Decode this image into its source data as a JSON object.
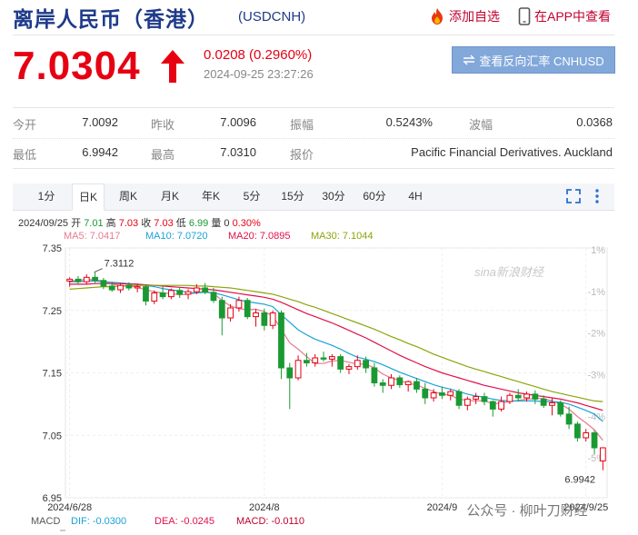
{
  "header": {
    "title": "离岸人民币（香港）",
    "code": "(USDCNH)",
    "add_watch_label": "添加自选",
    "app_view_label": "在APP中查看"
  },
  "quote": {
    "price": "7.0304",
    "change": "0.0208 (0.2960%)",
    "timestamp": "2024-09-25 23:27:26",
    "reverse_button_label": "查看反向汇率 CNHUSD",
    "direction": "up"
  },
  "stats": {
    "open_label": "今开",
    "open": "7.0092",
    "prev_close_label": "昨收",
    "prev_close": "7.0096",
    "amplitude_label": "振幅",
    "amplitude": "0.5243%",
    "swing_label": "波幅",
    "swing": "0.0368",
    "low_label": "最低",
    "low": "6.9942",
    "high_label": "最高",
    "high": "7.0310",
    "quote_label": "报价",
    "quote_source": "Pacific Financial Derivatives. Auckland"
  },
  "tabs": [
    "1分",
    "日K",
    "周K",
    "月K",
    "年K",
    "5分",
    "15分",
    "30分",
    "60分",
    "4H"
  ],
  "active_tab": 1,
  "ohlc": {
    "date": "2024/09/25",
    "open_label": "开",
    "open": "7.01",
    "high_label": "高",
    "high": "7.03",
    "close_label": "收",
    "close": "7.03",
    "low_label": "低",
    "low": "6.99",
    "volume_label": "量",
    "volume": "0",
    "pct": "0.30%"
  },
  "ma": [
    {
      "label": "MA5: 7.0417",
      "color": "#e87a90"
    },
    {
      "label": "MA10: 7.0720",
      "color": "#1ba2d6"
    },
    {
      "label": "MA20: 7.0895",
      "color": "#e0104a"
    },
    {
      "label": "MA30: 7.1044",
      "color": "#8aa50c"
    }
  ],
  "macd": {
    "label": "MACD",
    "dif": "DIF: -0.0300",
    "dif_color": "#1ba2d6",
    "dea": "DEA: -0.0245",
    "dea_color": "#e0104a",
    "macd": "MACD: -0.0110",
    "macd_color": "#c0002f"
  },
  "watermark": "sina新浪财经",
  "footer_watermark": "公众号 · 柳叶刀财经",
  "chart_data": {
    "type": "candlestick",
    "ylim": [
      6.95,
      7.35
    ],
    "yticks": [
      "7.35",
      "7.25",
      "7.15",
      "7.05",
      "6.95"
    ],
    "pct_ticks": [
      "1%",
      "-1%",
      "-2%",
      "-3%",
      "-4%",
      "-5%"
    ],
    "xticks": [
      {
        "label": "2024/6/28",
        "i": 0
      },
      {
        "label": "2024/8",
        "i": 23
      },
      {
        "label": "2024/9",
        "i": 44
      },
      {
        "label": "2024/9/25",
        "i": 61
      }
    ],
    "annotations": [
      {
        "label": "7.3112",
        "i": 3,
        "value": 7.3112
      },
      {
        "label": "6.9942",
        "i": 62,
        "value": 6.9942
      }
    ],
    "up_color": "#e60012",
    "down_color": "#1a9933",
    "candles": [
      {
        "o": 7.297,
        "h": 7.303,
        "l": 7.288,
        "c": 7.3
      },
      {
        "o": 7.3,
        "h": 7.305,
        "l": 7.292,
        "c": 7.296
      },
      {
        "o": 7.296,
        "h": 7.308,
        "l": 7.292,
        "c": 7.303
      },
      {
        "o": 7.303,
        "h": 7.311,
        "l": 7.294,
        "c": 7.298
      },
      {
        "o": 7.298,
        "h": 7.302,
        "l": 7.284,
        "c": 7.289
      },
      {
        "o": 7.289,
        "h": 7.296,
        "l": 7.28,
        "c": 7.283
      },
      {
        "o": 7.283,
        "h": 7.293,
        "l": 7.278,
        "c": 7.29
      },
      {
        "o": 7.29,
        "h": 7.295,
        "l": 7.282,
        "c": 7.286
      },
      {
        "o": 7.286,
        "h": 7.292,
        "l": 7.279,
        "c": 7.288
      },
      {
        "o": 7.288,
        "h": 7.29,
        "l": 7.258,
        "c": 7.265
      },
      {
        "o": 7.265,
        "h": 7.282,
        "l": 7.26,
        "c": 7.278
      },
      {
        "o": 7.278,
        "h": 7.288,
        "l": 7.268,
        "c": 7.272
      },
      {
        "o": 7.272,
        "h": 7.285,
        "l": 7.268,
        "c": 7.282
      },
      {
        "o": 7.282,
        "h": 7.287,
        "l": 7.27,
        "c": 7.276
      },
      {
        "o": 7.276,
        "h": 7.284,
        "l": 7.268,
        "c": 7.28
      },
      {
        "o": 7.28,
        "h": 7.292,
        "l": 7.276,
        "c": 7.286
      },
      {
        "o": 7.286,
        "h": 7.294,
        "l": 7.276,
        "c": 7.279
      },
      {
        "o": 7.279,
        "h": 7.286,
        "l": 7.262,
        "c": 7.266
      },
      {
        "o": 7.266,
        "h": 7.272,
        "l": 7.21,
        "c": 7.238
      },
      {
        "o": 7.238,
        "h": 7.26,
        "l": 7.232,
        "c": 7.254
      },
      {
        "o": 7.254,
        "h": 7.272,
        "l": 7.248,
        "c": 7.266
      },
      {
        "o": 7.266,
        "h": 7.27,
        "l": 7.236,
        "c": 7.24
      },
      {
        "o": 7.24,
        "h": 7.252,
        "l": 7.224,
        "c": 7.246
      },
      {
        "o": 7.246,
        "h": 7.253,
        "l": 7.218,
        "c": 7.226
      },
      {
        "o": 7.226,
        "h": 7.25,
        "l": 7.22,
        "c": 7.246
      },
      {
        "o": 7.246,
        "h": 7.25,
        "l": 7.14,
        "c": 7.158
      },
      {
        "o": 7.158,
        "h": 7.166,
        "l": 7.092,
        "c": 7.142
      },
      {
        "o": 7.142,
        "h": 7.178,
        "l": 7.138,
        "c": 7.17
      },
      {
        "o": 7.17,
        "h": 7.182,
        "l": 7.16,
        "c": 7.166
      },
      {
        "o": 7.166,
        "h": 7.18,
        "l": 7.16,
        "c": 7.174
      },
      {
        "o": 7.174,
        "h": 7.184,
        "l": 7.168,
        "c": 7.172
      },
      {
        "o": 7.172,
        "h": 7.18,
        "l": 7.16,
        "c": 7.176
      },
      {
        "o": 7.176,
        "h": 7.18,
        "l": 7.15,
        "c": 7.156
      },
      {
        "o": 7.156,
        "h": 7.164,
        "l": 7.148,
        "c": 7.16
      },
      {
        "o": 7.16,
        "h": 7.178,
        "l": 7.155,
        "c": 7.17
      },
      {
        "o": 7.17,
        "h": 7.176,
        "l": 7.15,
        "c": 7.158
      },
      {
        "o": 7.158,
        "h": 7.166,
        "l": 7.128,
        "c": 7.134
      },
      {
        "o": 7.134,
        "h": 7.14,
        "l": 7.118,
        "c": 7.13
      },
      {
        "o": 7.13,
        "h": 7.148,
        "l": 7.124,
        "c": 7.142
      },
      {
        "o": 7.142,
        "h": 7.146,
        "l": 7.126,
        "c": 7.131
      },
      {
        "o": 7.131,
        "h": 7.138,
        "l": 7.12,
        "c": 7.136
      },
      {
        "o": 7.136,
        "h": 7.142,
        "l": 7.118,
        "c": 7.124
      },
      {
        "o": 7.124,
        "h": 7.134,
        "l": 7.1,
        "c": 7.11
      },
      {
        "o": 7.11,
        "h": 7.124,
        "l": 7.104,
        "c": 7.118
      },
      {
        "o": 7.118,
        "h": 7.128,
        "l": 7.108,
        "c": 7.114
      },
      {
        "o": 7.114,
        "h": 7.124,
        "l": 7.106,
        "c": 7.12
      },
      {
        "o": 7.12,
        "h": 7.124,
        "l": 7.092,
        "c": 7.098
      },
      {
        "o": 7.098,
        "h": 7.112,
        "l": 7.09,
        "c": 7.108
      },
      {
        "o": 7.108,
        "h": 7.118,
        "l": 7.1,
        "c": 7.112
      },
      {
        "o": 7.112,
        "h": 7.118,
        "l": 7.098,
        "c": 7.104
      },
      {
        "o": 7.104,
        "h": 7.106,
        "l": 7.08,
        "c": 7.092
      },
      {
        "o": 7.092,
        "h": 7.112,
        "l": 7.088,
        "c": 7.104
      },
      {
        "o": 7.104,
        "h": 7.118,
        "l": 7.1,
        "c": 7.114
      },
      {
        "o": 7.114,
        "h": 7.124,
        "l": 7.104,
        "c": 7.11
      },
      {
        "o": 7.11,
        "h": 7.12,
        "l": 7.104,
        "c": 7.116
      },
      {
        "o": 7.116,
        "h": 7.122,
        "l": 7.1,
        "c": 7.108
      },
      {
        "o": 7.108,
        "h": 7.114,
        "l": 7.094,
        "c": 7.098
      },
      {
        "o": 7.098,
        "h": 7.11,
        "l": 7.082,
        "c": 7.102
      },
      {
        "o": 7.102,
        "h": 7.106,
        "l": 7.08,
        "c": 7.084
      },
      {
        "o": 7.084,
        "h": 7.096,
        "l": 7.06,
        "c": 7.068
      },
      {
        "o": 7.068,
        "h": 7.072,
        "l": 7.04,
        "c": 7.046
      },
      {
        "o": 7.046,
        "h": 7.06,
        "l": 7.04,
        "c": 7.054
      },
      {
        "o": 7.054,
        "h": 7.058,
        "l": 7.02,
        "c": 7.03
      },
      {
        "o": 7.009,
        "h": 7.031,
        "l": 6.994,
        "c": 7.03
      }
    ],
    "series": [
      {
        "name": "MA5",
        "color": "#e87a90",
        "values": [
          7.297,
          7.298,
          7.3,
          7.299,
          7.297,
          7.292,
          7.29,
          7.289,
          7.287,
          7.283,
          7.28,
          7.278,
          7.277,
          7.275,
          7.276,
          7.278,
          7.281,
          7.277,
          7.266,
          7.257,
          7.253,
          7.251,
          7.252,
          7.248,
          7.241,
          7.22,
          7.198,
          7.188,
          7.176,
          7.165,
          7.165,
          7.169,
          7.17,
          7.167,
          7.164,
          7.164,
          7.158,
          7.148,
          7.142,
          7.138,
          7.133,
          7.131,
          7.125,
          7.12,
          7.116,
          7.114,
          7.108,
          7.106,
          7.105,
          7.106,
          7.1,
          7.102,
          7.104,
          7.106,
          7.108,
          7.109,
          7.109,
          7.105,
          7.1,
          7.092,
          7.08,
          7.07,
          7.059,
          7.042
        ]
      },
      {
        "name": "MA10",
        "color": "#1ba2d6",
        "values": [
          7.296,
          7.296,
          7.297,
          7.297,
          7.296,
          7.295,
          7.294,
          7.293,
          7.292,
          7.29,
          7.288,
          7.285,
          7.283,
          7.281,
          7.279,
          7.278,
          7.279,
          7.278,
          7.275,
          7.271,
          7.267,
          7.264,
          7.262,
          7.26,
          7.256,
          7.243,
          7.231,
          7.219,
          7.211,
          7.204,
          7.199,
          7.194,
          7.188,
          7.181,
          7.175,
          7.172,
          7.168,
          7.163,
          7.157,
          7.151,
          7.146,
          7.141,
          7.136,
          7.131,
          7.127,
          7.124,
          7.12,
          7.116,
          7.113,
          7.111,
          7.108,
          7.106,
          7.105,
          7.105,
          7.105,
          7.105,
          7.104,
          7.104,
          7.103,
          7.1,
          7.095,
          7.09,
          7.084,
          7.072
        ]
      },
      {
        "name": "MA20",
        "color": "#e0104a",
        "values": [
          7.292,
          7.292,
          7.292,
          7.293,
          7.293,
          7.293,
          7.293,
          7.292,
          7.292,
          7.291,
          7.29,
          7.289,
          7.288,
          7.287,
          7.286,
          7.285,
          7.284,
          7.283,
          7.281,
          7.279,
          7.277,
          7.275,
          7.273,
          7.271,
          7.268,
          7.263,
          7.257,
          7.251,
          7.245,
          7.24,
          7.235,
          7.23,
          7.224,
          7.218,
          7.212,
          7.206,
          7.199,
          7.192,
          7.185,
          7.178,
          7.172,
          7.166,
          7.16,
          7.155,
          7.15,
          7.146,
          7.142,
          7.138,
          7.134,
          7.13,
          7.127,
          7.124,
          7.121,
          7.118,
          7.116,
          7.114,
          7.112,
          7.11,
          7.108,
          7.105,
          7.102,
          7.098,
          7.094,
          7.09
        ]
      },
      {
        "name": "MA30",
        "color": "#8aa50c",
        "values": [
          7.284,
          7.285,
          7.286,
          7.287,
          7.288,
          7.288,
          7.289,
          7.289,
          7.29,
          7.29,
          7.29,
          7.29,
          7.29,
          7.29,
          7.29,
          7.289,
          7.289,
          7.288,
          7.287,
          7.286,
          7.284,
          7.282,
          7.28,
          7.278,
          7.276,
          7.272,
          7.268,
          7.264,
          7.259,
          7.255,
          7.25,
          7.245,
          7.24,
          7.235,
          7.23,
          7.225,
          7.22,
          7.214,
          7.208,
          7.203,
          7.197,
          7.192,
          7.186,
          7.18,
          7.175,
          7.17,
          7.165,
          7.16,
          7.156,
          7.152,
          7.148,
          7.144,
          7.14,
          7.136,
          7.132,
          7.128,
          7.124,
          7.12,
          7.117,
          7.114,
          7.111,
          7.108,
          7.105,
          7.104
        ]
      }
    ]
  }
}
